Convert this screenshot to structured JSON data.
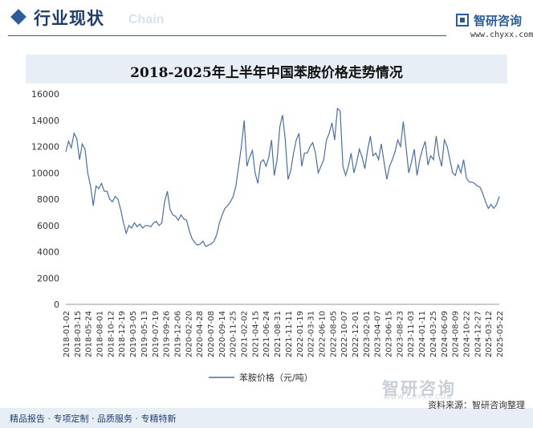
{
  "header": {
    "section_title": "行业现状",
    "watermark_word": "Chain",
    "brand_name": "智研咨询",
    "brand_url": "www.chyxx.com"
  },
  "chart_data": {
    "type": "line",
    "title": "2018-2025年上半年中国苯胺价格走势情况",
    "xlabel": "",
    "ylabel": "",
    "ylim": [
      0,
      16000
    ],
    "yticks": [
      0,
      2000,
      4000,
      6000,
      8000,
      10000,
      12000,
      14000,
      16000
    ],
    "grid": false,
    "legend": "bottom",
    "colors": {
      "line": "#4a6fa5"
    },
    "x_tick_labels": [
      "2018-01-02",
      "2018-03-15",
      "2018-05-24",
      "2018-08-01",
      "2018-10-12",
      "2018-12-19",
      "2019-03-05",
      "2019-05-13",
      "2019-07-19",
      "2019-09-26",
      "2019-12-06",
      "2020-02-20",
      "2020-04-28",
      "2020-07-08",
      "2020-09-14",
      "2020-11-25",
      "2021-02-02",
      "2021-04-15",
      "2021-06-24",
      "2021-08-31",
      "2021-11-11",
      "2022-01-19",
      "2022-03-31",
      "2022-06-10",
      "2022-08-05",
      "2022-10-07",
      "2022-12-01",
      "2023-02-01",
      "2023-04-07",
      "2023-06-15",
      "2023-08-23",
      "2023-11-03",
      "2024-01-11",
      "2024-03-25",
      "2024-06-09",
      "2024-08-09",
      "2024-10-22",
      "2024-12-27",
      "2025-03-12",
      "2025-05-22"
    ],
    "series": [
      {
        "name": "苯胺价格（元/吨）",
        "values": [
          11600,
          12400,
          11900,
          13000,
          12600,
          11000,
          12200,
          11800,
          10000,
          9000,
          7500,
          9000,
          8800,
          9200,
          8600,
          8600,
          8000,
          7800,
          8200,
          8000,
          7200,
          6200,
          5400,
          6000,
          5800,
          6200,
          5900,
          6100,
          5800,
          6000,
          6000,
          5900,
          6200,
          6300,
          6000,
          6200,
          7800,
          8600,
          7200,
          6800,
          6700,
          6400,
          6800,
          6500,
          6400,
          5600,
          5000,
          4700,
          4500,
          4600,
          4800,
          4400,
          4500,
          4600,
          4800,
          5300,
          6200,
          6800,
          7300,
          7500,
          7800,
          8200,
          9000,
          10500,
          12000,
          14000,
          10500,
          11200,
          11700,
          10000,
          9200,
          10800,
          11000,
          10500,
          11200,
          12500,
          9800,
          11000,
          13500,
          14400,
          12500,
          9500,
          10200,
          11500,
          12500,
          13000,
          10500,
          11500,
          11500,
          12000,
          12300,
          11500,
          10000,
          10500,
          11000,
          12500,
          13000,
          13800,
          12500,
          14900,
          14700,
          10500,
          9800,
          10500,
          11500,
          10000,
          10800,
          11800,
          11200,
          10300,
          11700,
          12800,
          11300,
          11500,
          11000,
          12200,
          10800,
          9500,
          10500,
          11000,
          11600,
          12500,
          12000,
          13900,
          12000,
          10000,
          10800,
          11800,
          9800,
          11000,
          11800,
          12400,
          10600,
          11300,
          11000,
          12800,
          11300,
          10500,
          12500,
          12000,
          11000,
          10000,
          9800,
          10600,
          10000,
          11000,
          9600,
          9300,
          9300,
          9200,
          9000,
          8900,
          8400,
          7800,
          7300,
          7600,
          7300,
          7600,
          8200
        ]
      }
    ]
  },
  "footer": {
    "slogan": "精品报告 · 专项定制 · 品质服务 · 专精特新",
    "source": "资料来源：智研咨询整理",
    "wm_brand": "智研咨询",
    "wm_sub": "WWW.CHYXX.COM"
  }
}
